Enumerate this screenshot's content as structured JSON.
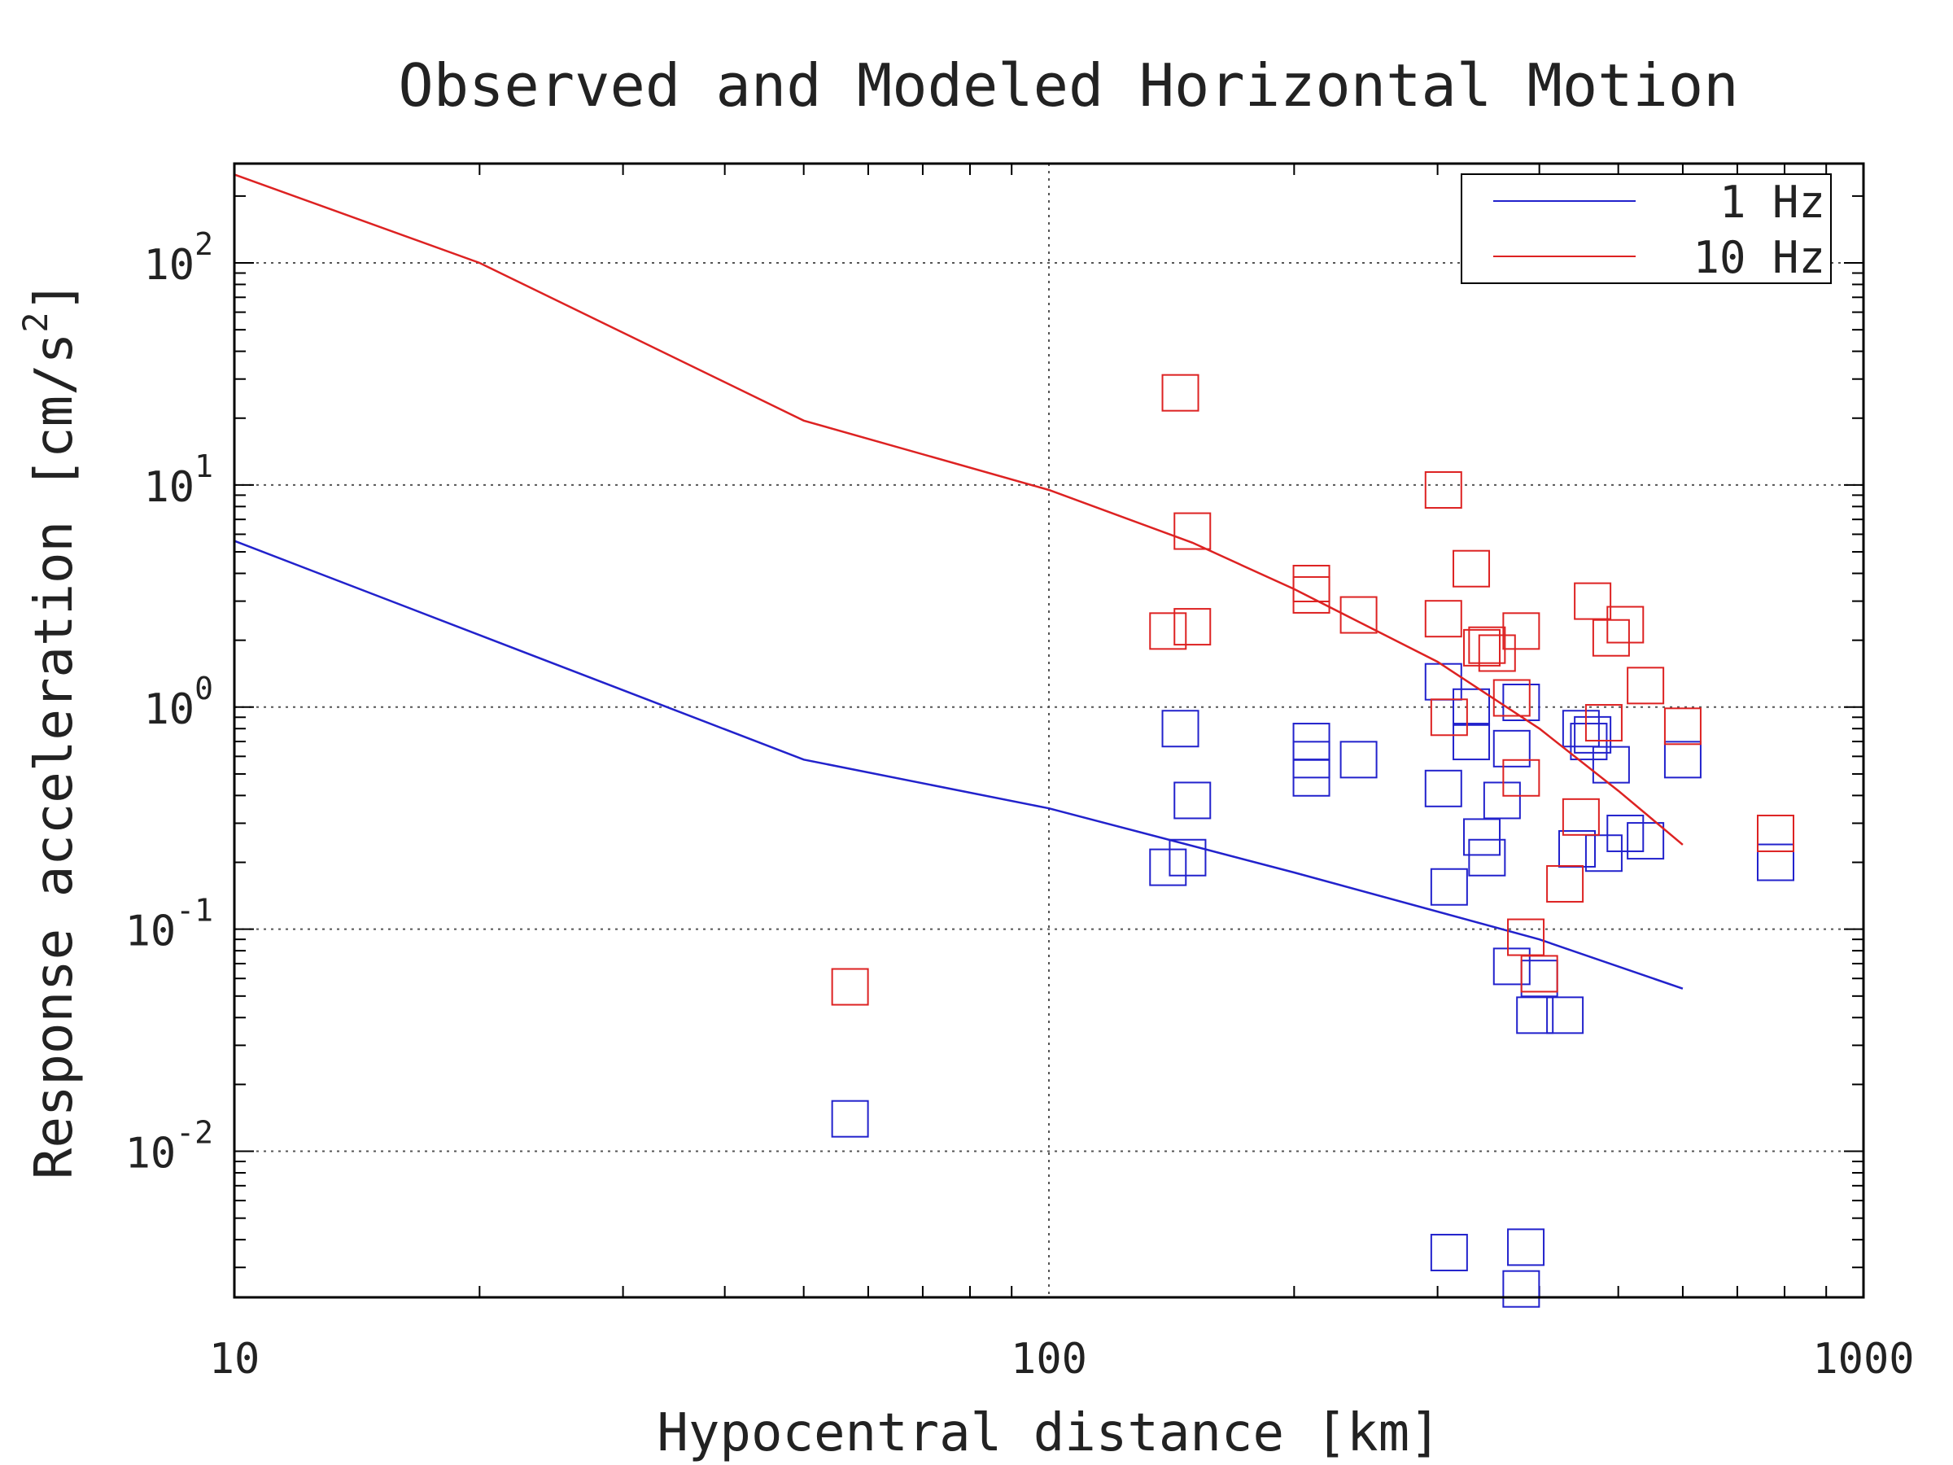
{
  "chart_data": {
    "type": "scatter",
    "title": "Observed and Modeled Horizontal Motion",
    "xlabel": "Hypocentral distance [km]",
    "ylabel_text": "Response acceleration [cm/s",
    "ylabel_sup": "2",
    "ylabel_close": "]",
    "x_scale": "log",
    "y_scale": "log",
    "xlim": [
      10,
      1000
    ],
    "ylim": [
      0.0022,
      280
    ],
    "grid": true,
    "legend_position": "top-right",
    "x_ticks": [
      {
        "value": 10,
        "label": "10"
      },
      {
        "value": 100,
        "label": "100"
      },
      {
        "value": 1000,
        "label": "1000"
      }
    ],
    "y_ticks": [
      {
        "value": 100,
        "base": "10",
        "exp": "2"
      },
      {
        "value": 10,
        "base": "10",
        "exp": "1"
      },
      {
        "value": 1,
        "base": "10",
        "exp": "0"
      },
      {
        "value": 0.1,
        "base": "10",
        "exp": "-1"
      },
      {
        "value": 0.01,
        "base": "10",
        "exp": "-2"
      }
    ],
    "series": [
      {
        "name": "1 Hz",
        "color": "#2222cc",
        "model": {
          "x": [
            10,
            50,
            100,
            200,
            400,
            600
          ],
          "y": [
            5.6,
            0.58,
            0.35,
            0.18,
            0.09,
            0.054
          ]
        },
        "observed": {
          "x": [
            57,
            140,
            145,
            148,
            150,
            210,
            210,
            210,
            240,
            305,
            305,
            310,
            310,
            330,
            330,
            340,
            345,
            360,
            370,
            370,
            380,
            380,
            385,
            395,
            400,
            430,
            445,
            450,
            460,
            465,
            480,
            490,
            510,
            540,
            600,
            780
          ],
          "y": [
            0.014,
            0.19,
            0.8,
            0.21,
            0.38,
            0.48,
            0.58,
            0.7,
            0.58,
            0.43,
            1.3,
            0.155,
            0.0035,
            0.7,
            1.0,
            0.26,
            0.21,
            0.38,
            0.65,
            0.068,
            1.05,
            0.0024,
            0.0037,
            0.041,
            0.06,
            0.041,
            0.23,
            0.8,
            0.7,
            0.75,
            0.22,
            0.55,
            0.27,
            0.25,
            0.58,
            0.2
          ]
        }
      },
      {
        "name": "10 Hz",
        "color": "#dd2222",
        "model": {
          "x": [
            10,
            20,
            50,
            100,
            150,
            200,
            300,
            400,
            500,
            600
          ],
          "y": [
            250,
            100,
            19.5,
            9.5,
            5.5,
            3.4,
            1.6,
            0.8,
            0.42,
            0.24
          ]
        },
        "observed": {
          "x": [
            57,
            140,
            145,
            150,
            150,
            210,
            210,
            240,
            305,
            305,
            310,
            330,
            340,
            345,
            355,
            370,
            380,
            380,
            385,
            400,
            430,
            450,
            465,
            480,
            490,
            510,
            540,
            600,
            780
          ],
          "y": [
            0.055,
            2.2,
            26,
            6.2,
            2.3,
            3.2,
            3.6,
            2.6,
            2.5,
            9.5,
            0.9,
            4.2,
            1.85,
            1.9,
            1.75,
            1.1,
            0.48,
            2.2,
            0.092,
            0.063,
            0.16,
            0.32,
            3.0,
            0.85,
            2.05,
            2.35,
            1.25,
            0.82,
            0.27
          ]
        }
      }
    ]
  }
}
